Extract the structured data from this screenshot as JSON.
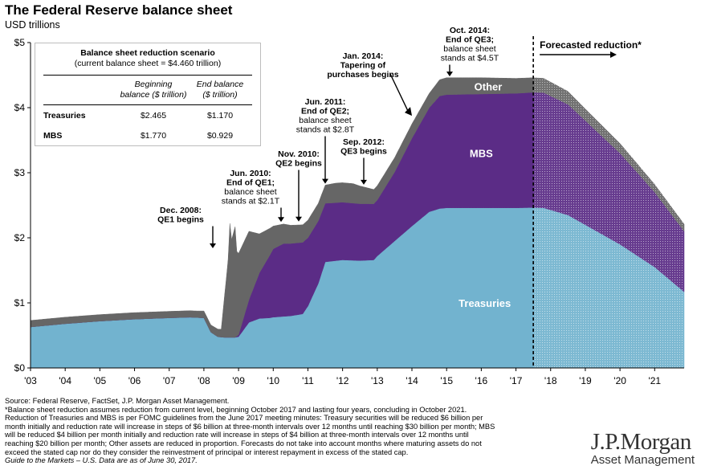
{
  "header": {
    "title": "The Federal Reserve balance sheet",
    "subtitle": "USD trillions"
  },
  "scenario_table": {
    "title": "Balance sheet reduction scenario",
    "subtitle": "(current balance sheet = $4.460 trillion)",
    "col1_line1": "Beginning",
    "col1_line2": "balance ($ trillion)",
    "col2_line1": "End balance",
    "col2_line2": "($ trillion)",
    "rows": [
      {
        "label": "Treasuries",
        "begin": "$2.465",
        "end": "$1.170"
      },
      {
        "label": "MBS",
        "begin": "$1.770",
        "end": "$0.929"
      }
    ]
  },
  "chart_data": {
    "type": "area",
    "stacked": true,
    "ylim": [
      0,
      5
    ],
    "xlim": [
      2003,
      2021.85
    ],
    "y_ticks": [
      "$0",
      "$1",
      "$2",
      "$3",
      "$4",
      "$5"
    ],
    "x_ticks": [
      "'03",
      "'04",
      "'05",
      "'06",
      "'07",
      "'08",
      "'09",
      "'10",
      "'11",
      "'12",
      "'13",
      "'14",
      "'15",
      "'16",
      "'17",
      "'18",
      "'19",
      "'20",
      "'21"
    ],
    "forecast_start": 2017.5,
    "forecast_label": "Forecasted reduction*",
    "colors": {
      "treasuries": "#72b3cf",
      "mbs": "#5b2c86",
      "other": "#666666"
    },
    "series": [
      {
        "name": "Treasuries",
        "x": [
          2003,
          2004,
          2005,
          2006,
          2007,
          2007.6,
          2008.0,
          2008.2,
          2008.4,
          2008.6,
          2008.9,
          2009.0,
          2009.3,
          2009.6,
          2009.9,
          2010.0,
          2010.5,
          2010.85,
          2011.0,
          2011.3,
          2011.5,
          2012.0,
          2012.5,
          2012.9,
          2013.0,
          2013.5,
          2014.0,
          2014.5,
          2014.8,
          2015,
          2016,
          2017,
          2017.5,
          2017.8,
          2018.5,
          2019,
          2020,
          2021,
          2021.85
        ],
        "values": [
          0.63,
          0.68,
          0.72,
          0.75,
          0.77,
          0.78,
          0.77,
          0.55,
          0.48,
          0.47,
          0.47,
          0.48,
          0.7,
          0.76,
          0.77,
          0.78,
          0.8,
          0.83,
          0.95,
          1.3,
          1.63,
          1.66,
          1.65,
          1.66,
          1.72,
          1.95,
          2.18,
          2.4,
          2.45,
          2.46,
          2.46,
          2.46,
          2.465,
          2.46,
          2.35,
          2.2,
          1.9,
          1.55,
          1.17
        ]
      },
      {
        "name": "MBS",
        "x": [
          2003,
          2008.9,
          2009.0,
          2009.3,
          2009.6,
          2010.0,
          2010.3,
          2010.85,
          2011.0,
          2011.5,
          2013.0,
          2013.5,
          2014.0,
          2014.5,
          2014.8,
          2015,
          2016,
          2017,
          2017.5,
          2017.8,
          2018.5,
          2019,
          2020,
          2021,
          2021.85
        ],
        "values": [
          0,
          0,
          0.03,
          0.35,
          0.7,
          1.05,
          1.12,
          1.1,
          1.05,
          0.9,
          0.86,
          1.06,
          1.35,
          1.6,
          1.73,
          1.74,
          1.75,
          1.76,
          1.77,
          1.77,
          1.7,
          1.6,
          1.4,
          1.15,
          0.929
        ]
      },
      {
        "name": "Other",
        "x": [
          2003,
          2007.8,
          2008.5,
          2008.7,
          2008.75,
          2008.8,
          2008.9,
          2008.95,
          2009.0,
          2009.3,
          2009.6,
          2010.0,
          2010.3,
          2010.5,
          2010.85,
          2011.3,
          2011.5,
          2011.8,
          2012.3,
          2012.9,
          2013.0,
          2013.5,
          2014.0,
          2014.5,
          2014.8,
          2015,
          2016,
          2017,
          2017.5,
          2017.8,
          2018.5,
          2019,
          2020,
          2021,
          2021.85
        ],
        "values": [
          0.1,
          0.1,
          0.12,
          1.2,
          1.75,
          1.5,
          1.7,
          1.3,
          1.25,
          1.05,
          0.6,
          0.35,
          0.3,
          0.28,
          0.27,
          0.27,
          0.28,
          0.3,
          0.3,
          0.22,
          0.22,
          0.22,
          0.22,
          0.22,
          0.25,
          0.26,
          0.25,
          0.23,
          0.225,
          0.22,
          0.2,
          0.18,
          0.15,
          0.12,
          0.11
        ]
      }
    ],
    "area_labels": [
      "Treasuries",
      "MBS",
      "Other"
    ],
    "annotations": [
      {
        "lines": [
          "Dec. 2008:",
          "QE1 begins"
        ],
        "x": 2008.95
      },
      {
        "lines": [
          "Jun. 2010:",
          "End of QE1;",
          "balance sheet",
          "stands at $2.1T"
        ],
        "x": 2010.45
      },
      {
        "lines": [
          "Nov. 2010:",
          "QE2 begins"
        ],
        "x": 2010.85
      },
      {
        "lines": [
          "Jun. 2011:",
          "End of QE2;",
          "balance sheet",
          "stands at $2.8T"
        ],
        "x": 2011.45
      },
      {
        "lines": [
          "Sep. 2012:",
          "QE3 begins"
        ],
        "x": 2012.7
      },
      {
        "lines": [
          "Jan. 2014:",
          "Tapering of",
          "purchases begins"
        ],
        "x": 2014.05
      },
      {
        "lines": [
          "Oct. 2014:",
          "End of QE3;",
          "balance sheet",
          "stands at $4.5T"
        ],
        "x": 2014.8
      }
    ]
  },
  "footer": {
    "lines": [
      "Source: Federal Reserve, FactSet, J.P. Morgan Asset Management.",
      "*Balance sheet reduction assumes reduction from current level, beginning October 2017 and lasting four years, concluding in October 2021.",
      "Reduction of Treasuries and MBS is per FOMC guidelines from the June 2017 meeting minutes: Treasury securities will be reduced $6 billion per",
      "month initially and reduction rate will increase in steps of $6 billion at three-month intervals over 12 months until reaching $30 billion per month; MBS",
      "will be reduced $4 billion per month initially and reduction rate will increase in steps of $4 billion at three-month intervals over 12 months until",
      "reaching $20 billion per month; Other assets are reduced in proportion. Forecasts do not take into account months where maturing assets do not",
      "exceed the stated cap nor do they consider the reinvestment of principal or interest repayment in excess of the stated cap."
    ],
    "guide": "Guide to the Markets – U.S. Data are as of June 30, 2017."
  },
  "logo": {
    "name": "J.P.Morgan",
    "tagline": "Asset Management"
  }
}
